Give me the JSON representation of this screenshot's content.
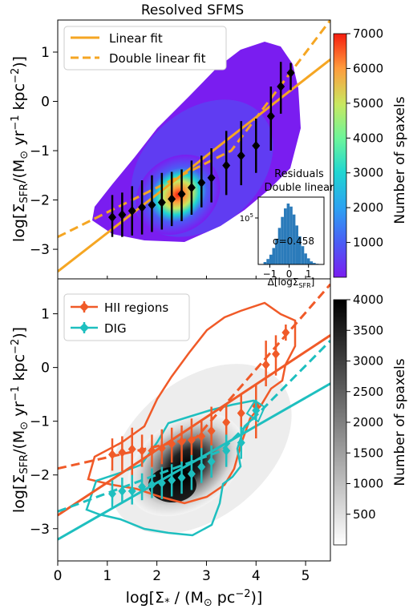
{
  "chart_data": [
    {
      "type": "heatmap",
      "title": "Resolved SFMS",
      "xlabel": "",
      "ylabel": "log[Σ_SFR/(M_⊙ yr^-1 kpc^-2)]",
      "xlim": [
        0,
        5.5
      ],
      "ylim": [
        -3.6,
        1.65
      ],
      "yticks": [
        -3,
        -2,
        -1,
        0,
        1
      ],
      "colorbar": {
        "label": "Number of spaxels",
        "range": [
          0,
          7000
        ],
        "ticks": [
          1000,
          2000,
          3000,
          4000,
          5000,
          6000,
          7000
        ],
        "colormap": "rainbow"
      },
      "legend": {
        "placement": "top-left",
        "entries": [
          {
            "name": "Linear fit",
            "style": "solid",
            "color": "#f5a623"
          },
          {
            "name": "Double linear fit",
            "style": "dashed",
            "color": "#f5a623"
          }
        ]
      },
      "fits": {
        "linear": [
          [
            0,
            -3.45
          ],
          [
            5.5,
            0.85
          ]
        ],
        "double_linear": [
          [
            0,
            -2.75
          ],
          [
            3.5,
            -1.0
          ],
          [
            5.5,
            1.65
          ]
        ]
      },
      "binned_medians": [
        {
          "x": 1.1,
          "y": -2.35,
          "y_err": [
            0.4,
            0.45
          ]
        },
        {
          "x": 1.3,
          "y": -2.3,
          "y_err": [
            0.45,
            0.45
          ]
        },
        {
          "x": 1.5,
          "y": -2.22,
          "y_err": [
            0.5,
            0.5
          ]
        },
        {
          "x": 1.7,
          "y": -2.15,
          "y_err": [
            0.55,
            0.55
          ]
        },
        {
          "x": 1.9,
          "y": -2.1,
          "y_err": [
            0.55,
            0.6
          ]
        },
        {
          "x": 2.1,
          "y": -2.05,
          "y_err": [
            0.55,
            0.6
          ]
        },
        {
          "x": 2.3,
          "y": -1.98,
          "y_err": [
            0.55,
            0.55
          ]
        },
        {
          "x": 2.5,
          "y": -1.88,
          "y_err": [
            0.55,
            0.5
          ]
        },
        {
          "x": 2.7,
          "y": -1.75,
          "y_err": [
            0.55,
            0.55
          ]
        },
        {
          "x": 2.9,
          "y": -1.65,
          "y_err": [
            0.5,
            0.55
          ]
        },
        {
          "x": 3.1,
          "y": -1.55,
          "y_err": [
            0.5,
            0.6
          ]
        },
        {
          "x": 3.4,
          "y": -1.3,
          "y_err": [
            0.6,
            0.7
          ]
        },
        {
          "x": 3.7,
          "y": -1.1,
          "y_err": [
            0.6,
            0.7
          ]
        },
        {
          "x": 4.0,
          "y": -0.9,
          "y_err": [
            0.55,
            0.55
          ]
        },
        {
          "x": 4.3,
          "y": -0.3,
          "y_err": [
            0.7,
            0.6
          ]
        },
        {
          "x": 4.5,
          "y": 0.3,
          "y_err": [
            0.55,
            0.5
          ]
        },
        {
          "x": 4.7,
          "y": 0.58,
          "y_err": [
            0.35,
            0.2
          ]
        }
      ],
      "inset": {
        "title_lines": [
          "Residuals",
          "Double linear"
        ],
        "xlabel": "Δ[logΣ_SFR]",
        "xticks": [
          -1,
          0,
          1
        ],
        "ytick_label": "10^5",
        "annotation": "σ=0.458",
        "bar_color": "#2b7bba",
        "histogram": {
          "bin_centers": [
            -1.25,
            -1.1,
            -0.95,
            -0.8,
            -0.65,
            -0.5,
            -0.35,
            -0.2,
            -0.05,
            0.1,
            0.25,
            0.4,
            0.55,
            0.7,
            0.85,
            1.0,
            1.15,
            1.3,
            1.45
          ],
          "heights": [
            0.04,
            0.09,
            0.16,
            0.27,
            0.42,
            0.6,
            0.78,
            0.92,
            1.0,
            0.95,
            0.82,
            0.64,
            0.46,
            0.3,
            0.18,
            0.1,
            0.05,
            0.025,
            0.01
          ]
        }
      }
    },
    {
      "type": "heatmap",
      "title": "",
      "xlabel": "log[Σ_* / (M_⊙ pc^-2)]",
      "ylabel": "log[Σ_SFR/(M_⊙ yr^-1 kpc^-2)]",
      "xlim": [
        0,
        5.5
      ],
      "ylim": [
        -3.6,
        1.65
      ],
      "xticks": [
        0,
        1,
        2,
        3,
        4,
        5
      ],
      "yticks": [
        -3,
        -2,
        -1,
        0,
        1
      ],
      "colorbar": {
        "label": "Number of spaxels",
        "range": [
          0,
          4000
        ],
        "ticks": [
          500,
          1000,
          1500,
          2000,
          2500,
          3000,
          3500,
          4000
        ],
        "colormap": "gray_r"
      },
      "legend": {
        "placement": "top-left",
        "entries": [
          {
            "name": "HII regions",
            "color": "#f05a28"
          },
          {
            "name": "DIG",
            "color": "#1ebfbf"
          }
        ]
      },
      "series": [
        {
          "name": "HII regions",
          "color": "#f05a28",
          "linear_fit": [
            [
              0,
              -2.75
            ],
            [
              5.5,
              0.6
            ]
          ],
          "double_linear_fit": [
            [
              0,
              -1.88
            ],
            [
              2.8,
              -1.3
            ],
            [
              5.5,
              1.55
            ]
          ],
          "binned_medians": [
            {
              "x": 1.1,
              "y": -1.62,
              "y_err": [
                0.3,
                0.3
              ]
            },
            {
              "x": 1.3,
              "y": -1.58,
              "y_err": [
                0.35,
                0.3
              ]
            },
            {
              "x": 1.5,
              "y": -1.52,
              "y_err": [
                0.5,
                0.4
              ]
            },
            {
              "x": 1.7,
              "y": -1.55,
              "y_err": [
                0.3,
                0.3
              ]
            },
            {
              "x": 1.9,
              "y": -1.55,
              "y_err": [
                0.3,
                0.3
              ]
            },
            {
              "x": 2.1,
              "y": -1.5,
              "y_err": [
                0.3,
                0.35
              ]
            },
            {
              "x": 2.3,
              "y": -1.42,
              "y_err": [
                0.35,
                0.3
              ]
            },
            {
              "x": 2.5,
              "y": -1.38,
              "y_err": [
                0.4,
                0.3
              ]
            },
            {
              "x": 2.7,
              "y": -1.35,
              "y_err": [
                0.3,
                0.4
              ]
            },
            {
              "x": 2.9,
              "y": -1.28,
              "y_err": [
                0.3,
                0.3
              ]
            },
            {
              "x": 3.1,
              "y": -1.18,
              "y_err": [
                0.4,
                0.45
              ]
            },
            {
              "x": 3.4,
              "y": -1.02,
              "y_err": [
                0.3,
                0.35
              ]
            },
            {
              "x": 3.7,
              "y": -0.85,
              "y_err": [
                0.3,
                0.35
              ]
            },
            {
              "x": 4.0,
              "y": -0.72,
              "y_err": [
                0.6,
                0.4
              ]
            },
            {
              "x": 4.2,
              "y": 0.05,
              "y_err": [
                0.4,
                0.45
              ]
            },
            {
              "x": 4.4,
              "y": 0.25,
              "y_err": [
                0.4,
                0.35
              ]
            },
            {
              "x": 4.6,
              "y": 0.65,
              "y_err": [
                0.15,
                0.15
              ]
            }
          ]
        },
        {
          "name": "DIG",
          "color": "#1ebfbf",
          "linear_fit": [
            [
              0,
              -3.2
            ],
            [
              5.5,
              -0.3
            ]
          ],
          "double_linear_fit": [
            [
              0,
              -2.68
            ],
            [
              3.3,
              -1.55
            ],
            [
              5.5,
              0.5
            ]
          ],
          "binned_medians": [
            {
              "x": 1.1,
              "y": -2.35,
              "y_err": [
                0.25,
                0.25
              ]
            },
            {
              "x": 1.3,
              "y": -2.3,
              "y_err": [
                0.2,
                0.25
              ]
            },
            {
              "x": 1.5,
              "y": -2.3,
              "y_err": [
                0.25,
                0.3
              ]
            },
            {
              "x": 1.7,
              "y": -2.22,
              "y_err": [
                0.25,
                0.25
              ]
            },
            {
              "x": 1.9,
              "y": -2.18,
              "y_err": [
                0.25,
                0.3
              ]
            },
            {
              "x": 2.1,
              "y": -2.15,
              "y_err": [
                0.3,
                0.3
              ]
            },
            {
              "x": 2.3,
              "y": -2.1,
              "y_err": [
                0.3,
                0.3
              ]
            },
            {
              "x": 2.5,
              "y": -2.05,
              "y_err": [
                0.3,
                0.3
              ]
            },
            {
              "x": 2.7,
              "y": -1.98,
              "y_err": [
                0.3,
                0.35
              ]
            },
            {
              "x": 2.9,
              "y": -1.85,
              "y_err": [
                0.3,
                0.35
              ]
            },
            {
              "x": 3.1,
              "y": -1.75,
              "y_err": [
                0.3,
                0.3
              ]
            },
            {
              "x": 3.4,
              "y": -1.55,
              "y_err": [
                0.3,
                0.3
              ]
            },
            {
              "x": 3.7,
              "y": -1.4,
              "y_err": [
                0.3,
                0.3
              ]
            },
            {
              "x": 4.0,
              "y": -0.8,
              "y_err": [
                0.2,
                0.2
              ]
            }
          ]
        }
      ]
    }
  ]
}
